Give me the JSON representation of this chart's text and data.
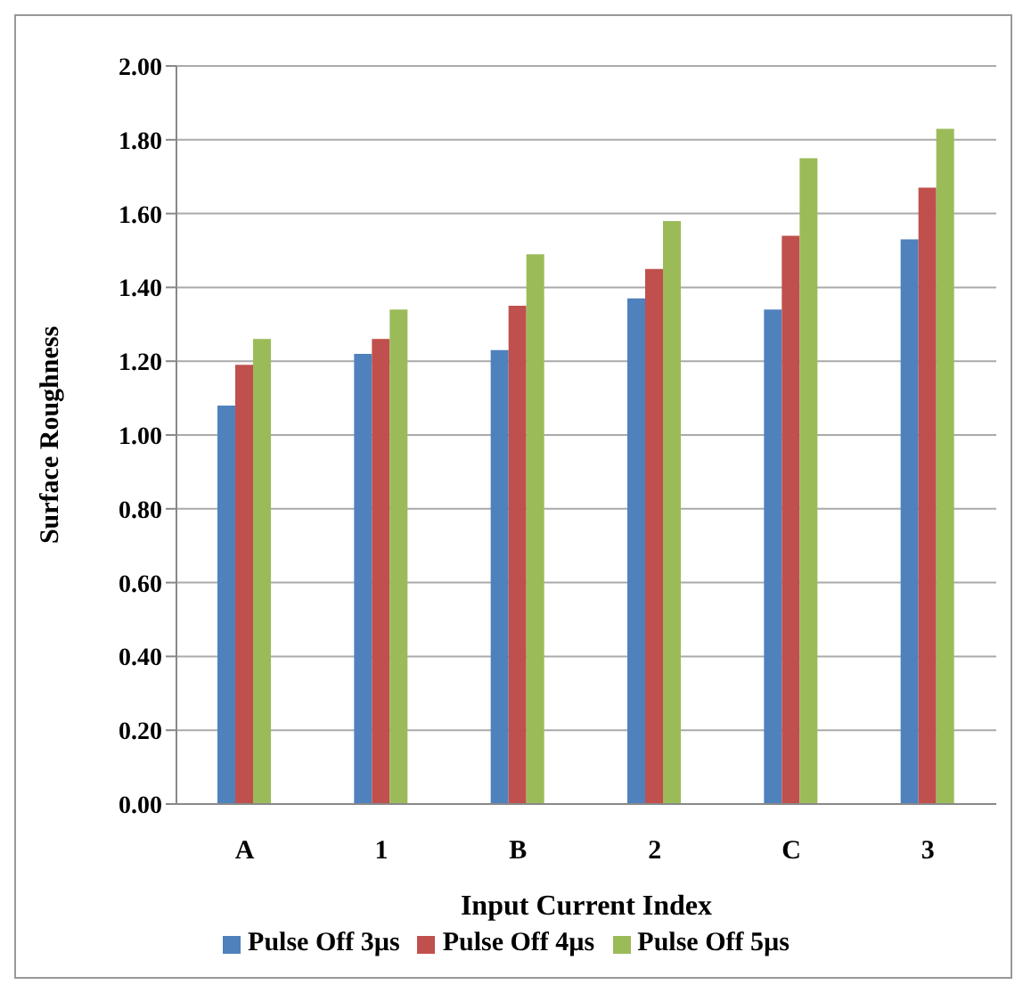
{
  "chart_data": {
    "type": "bar",
    "xlabel": "Input Current Index",
    "ylabel": "Surface Roughness",
    "categories": [
      "A",
      "1",
      "B",
      "2",
      "C",
      "3"
    ],
    "series": [
      {
        "name": "Pulse Off 3µs",
        "color": "#4f81bd",
        "values": [
          1.08,
          1.22,
          1.23,
          1.37,
          1.34,
          1.53
        ]
      },
      {
        "name": "Pulse Off 4µs",
        "color": "#c0504d",
        "values": [
          1.19,
          1.26,
          1.35,
          1.45,
          1.54,
          1.67
        ]
      },
      {
        "name": "Pulse Off 5µs",
        "color": "#9bbb59",
        "values": [
          1.26,
          1.34,
          1.49,
          1.58,
          1.75,
          1.83
        ]
      }
    ],
    "ylim": [
      0,
      2
    ],
    "yticks": [
      {
        "value": 0,
        "label": "0.00"
      },
      {
        "value": 0.2,
        "label": "0.20"
      },
      {
        "value": 0.4,
        "label": "0.40"
      },
      {
        "value": 0.6,
        "label": "0.60"
      },
      {
        "value": 0.8,
        "label": "0.80"
      },
      {
        "value": 1,
        "label": "1.00"
      },
      {
        "value": 1.2,
        "label": "1.20"
      },
      {
        "value": 1.4,
        "label": "1.40"
      },
      {
        "value": 1.6,
        "label": "1.60"
      },
      {
        "value": 1.8,
        "label": "1.80"
      },
      {
        "value": 2,
        "label": "2.00"
      }
    ],
    "grid": "y",
    "legend": "bottom"
  }
}
